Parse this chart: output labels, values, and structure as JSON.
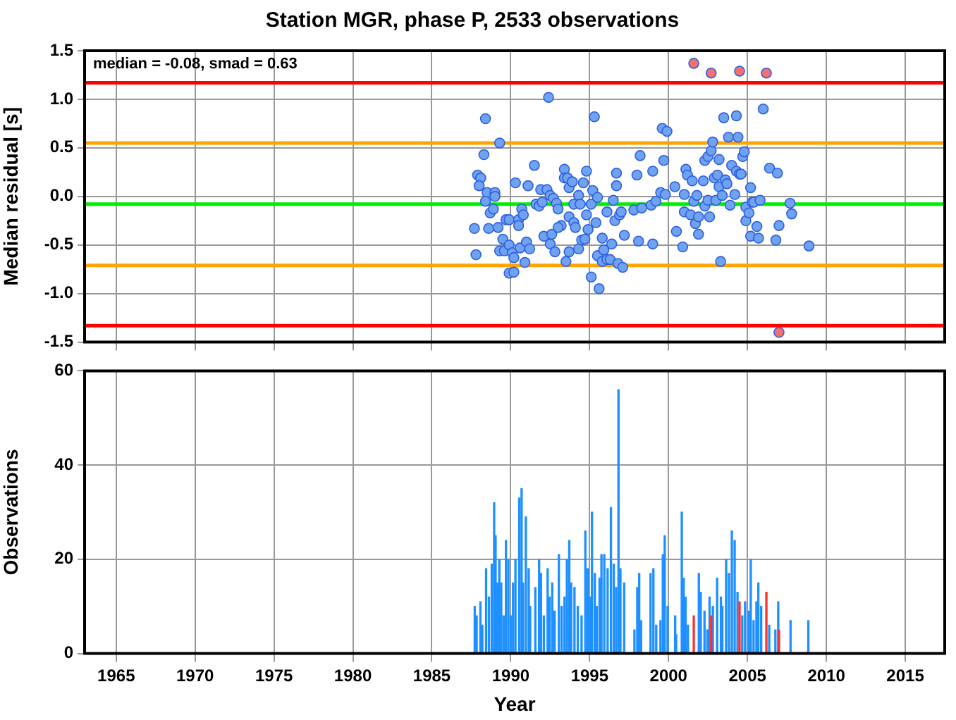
{
  "chart_data": [
    {
      "type": "scatter",
      "title": "Station MGR, phase P, 2533 observations",
      "ylabel": "Median residual [s]",
      "xlim": [
        1963,
        2017.5
      ],
      "xticks": [
        1965,
        1970,
        1975,
        1980,
        1985,
        1990,
        1995,
        2000,
        2005,
        2010,
        2015
      ],
      "ylim": [
        -1.5,
        1.5
      ],
      "yticks": [
        {
          "value": -1.5,
          "label": "-1.5"
        },
        {
          "value": -1,
          "label": "-1.0"
        },
        {
          "value": -0.5,
          "label": "-0.5"
        },
        {
          "value": 0,
          "label": "0.0"
        },
        {
          "value": 0.5,
          "label": "0.5"
        },
        {
          "value": 1,
          "label": "1.0"
        },
        {
          "value": 1.5,
          "label": "1.5"
        }
      ],
      "grid": true,
      "tick_labels": "y",
      "marker": "circle",
      "annotations": [
        "median = -0.08, smad = 0.63"
      ],
      "ref_lines": [
        {
          "axis": "y",
          "value": 1.17,
          "color": "#ff0000"
        },
        {
          "axis": "y",
          "value": 0.55,
          "color": "#ffa500"
        },
        {
          "axis": "y",
          "value": -0.08,
          "color": "#00ee00"
        },
        {
          "axis": "y",
          "value": -0.71,
          "color": "#ffa500"
        },
        {
          "axis": "y",
          "value": -1.33,
          "color": "#ff0000"
        }
      ],
      "series": [
        {
          "color": "#6fa3f0",
          "x": [
            1992.4,
            1988.4,
            1989.3,
            1988.3,
            1987.9,
            1988.1,
            1988.0,
            1988.5,
            1989.0,
            1989.0,
            1988.4,
            1988.7,
            1988.9,
            1987.7,
            1988.6,
            1989.2,
            1987.8,
            1989.5,
            1989.3,
            1989.6,
            1989.9,
            1990.1,
            1990.2,
            1989.9,
            1990.2,
            1989.7,
            1989.9,
            1990.5,
            1990.5,
            1990.7,
            1990.8,
            1990.3,
            1991.1,
            1991.5,
            1990.6,
            1991.0,
            1991.2,
            1990.9,
            1991.6,
            1991.8,
            1992.0,
            1991.9,
            1992.3,
            1992.5,
            1992.7,
            1992.9,
            1993.0,
            1992.1,
            1992.6,
            1992.5,
            1992.8,
            1993.2,
            1993.0,
            1993.4,
            1993.4,
            1993.6,
            1993.7,
            1993.9,
            1994.3,
            1994.0,
            1994.4,
            1994.6,
            1994.8,
            1993.7,
            1994.0,
            1994.1,
            1993.7,
            1993.5,
            1994.3,
            1994.5,
            1994.7,
            1994.8,
            1994.9,
            1995.1,
            1995.2,
            1995.3,
            1995.5,
            1995.4,
            1995.8,
            1995.1,
            1995.6,
            1995.5,
            1995.9,
            1995.8,
            1996.1,
            1996.3,
            1996.4,
            1996.1,
            1996.5,
            1996.6,
            1996.7,
            1996.7,
            1996.9,
            1997.0,
            1996.8,
            1997.1,
            1997.2,
            1997.8,
            1998.2,
            1998.0,
            1998.3,
            1998.1,
            1998.9,
            1999.0,
            1999.0,
            1999.2,
            1999.5,
            1999.7,
            1999.6,
            1999.9,
            1999.8,
            2000.4,
            2000.5,
            2000.9,
            2001.0,
            2001.0,
            2001.1,
            2001.2,
            2001.5,
            2001.6,
            2001.4,
            2001.7,
            2001.8,
            2001.9,
            2001.9,
            2002.2,
            2002.3,
            2002.3,
            2002.5,
            2002.5,
            2002.6,
            2002.7,
            2002.8,
            2002.9,
            2003.0,
            2003.1,
            2003.2,
            2003.2,
            2003.3,
            2003.4,
            2003.5,
            2003.6,
            2003.7,
            2003.8,
            2003.9,
            2004.0,
            2004.2,
            2004.3,
            2004.3,
            2004.4,
            2004.5,
            2004.7,
            2004.8,
            2004.6,
            2004.9,
            2004.9,
            2005.1,
            2005.2,
            2005.3,
            2005.2,
            2005.4,
            2005.6,
            2005.7,
            2005.8,
            2006.0,
            2006.4,
            2006.9,
            2007.0,
            2006.8,
            2007.7,
            2007.8,
            2008.9
          ],
          "values": [
            1.02,
            0.8,
            0.55,
            0.43,
            0.22,
            0.19,
            0.11,
            0.04,
            0.04,
            0.0,
            -0.05,
            -0.17,
            -0.13,
            -0.33,
            -0.33,
            -0.32,
            -0.6,
            -0.44,
            -0.56,
            -0.56,
            -0.5,
            -0.58,
            -0.63,
            -0.79,
            -0.78,
            -0.24,
            -0.24,
            -0.24,
            -0.3,
            -0.13,
            -0.19,
            0.14,
            0.11,
            0.32,
            -0.53,
            -0.47,
            -0.54,
            -0.68,
            -0.08,
            -0.1,
            -0.06,
            0.07,
            0.07,
            0.01,
            -0.02,
            -0.07,
            -0.13,
            -0.41,
            -0.39,
            -0.49,
            -0.57,
            -0.3,
            -0.32,
            0.28,
            0.19,
            0.19,
            0.09,
            0.15,
            0.01,
            -0.08,
            -0.08,
            0.14,
            0.26,
            -0.21,
            -0.27,
            -0.32,
            -0.57,
            -0.67,
            -0.54,
            -0.45,
            -0.44,
            -0.19,
            -0.34,
            -0.08,
            0.06,
            0.82,
            -0.01,
            -0.27,
            -0.43,
            -0.83,
            -0.95,
            -0.61,
            -0.55,
            -0.67,
            -0.65,
            -0.65,
            -0.49,
            -0.16,
            -0.04,
            -0.25,
            0.24,
            0.11,
            -0.19,
            -0.16,
            -0.69,
            -0.73,
            -0.4,
            -0.14,
            0.42,
            0.22,
            -0.12,
            -0.46,
            -0.09,
            -0.49,
            0.26,
            -0.05,
            0.04,
            0.37,
            0.7,
            0.67,
            0.02,
            0.1,
            -0.36,
            -0.52,
            0.02,
            -0.16,
            0.28,
            0.22,
            0.16,
            -0.05,
            -0.19,
            -0.28,
            0.01,
            -0.21,
            -0.39,
            0.16,
            -0.1,
            0.37,
            0.41,
            -0.04,
            -0.21,
            0.47,
            0.56,
            0.19,
            -0.04,
            0.22,
            0.38,
            0.1,
            -0.67,
            0.01,
            0.81,
            0.17,
            0.13,
            0.61,
            -0.09,
            0.32,
            0.02,
            0.83,
            0.26,
            0.61,
            0.23,
            0.41,
            0.46,
            0.23,
            -0.11,
            -0.25,
            -0.17,
            0.09,
            -0.06,
            -0.41,
            -0.06,
            -0.31,
            -0.43,
            -0.04,
            0.9,
            0.29,
            0.24,
            -0.3,
            -0.45,
            -0.07,
            -0.18,
            -0.51
          ]
        },
        {
          "color": "#f47070",
          "x": [
            2001.6,
            2002.7,
            2004.5,
            2006.2,
            2007.0
          ],
          "values": [
            1.37,
            1.27,
            1.29,
            1.27,
            -1.4
          ]
        }
      ]
    },
    {
      "type": "bar",
      "xlabel": "Year",
      "ylabel": "Observations",
      "xlim": [
        1963,
        2017.5
      ],
      "xticks": [
        1965,
        1970,
        1975,
        1980,
        1985,
        1990,
        1995,
        2000,
        2005,
        2010,
        2015
      ],
      "ylim": [
        0,
        60
      ],
      "yticks": [
        0,
        20,
        40,
        60
      ],
      "grid": true,
      "series": [
        {
          "color": "#1e90ff",
          "x": [
            1987.72,
            1987.84,
            1988.08,
            1988.2,
            1988.44,
            1988.62,
            1988.8,
            1988.95,
            1989.04,
            1989.16,
            1989.28,
            1989.4,
            1989.55,
            1989.7,
            1989.85,
            1990.0,
            1990.15,
            1990.3,
            1990.54,
            1990.69,
            1990.78,
            1990.96,
            1991.14,
            1991.23,
            1991.56,
            1991.8,
            1991.92,
            1992.1,
            1992.34,
            1992.46,
            1992.63,
            1992.78,
            1993.05,
            1993.23,
            1993.41,
            1993.56,
            1993.71,
            1993.83,
            1994.04,
            1994.25,
            1994.49,
            1994.73,
            1994.88,
            1995.03,
            1995.15,
            1995.33,
            1995.45,
            1995.63,
            1995.75,
            1995.93,
            1996.14,
            1996.35,
            1996.53,
            1996.68,
            1996.83,
            1996.95,
            1997.19,
            1997.84,
            1998.02,
            1998.14,
            1998.26,
            1998.86,
            1999.04,
            1999.22,
            1999.49,
            1999.64,
            1999.76,
            1999.94,
            2000.42,
            2000.48,
            2000.84,
            2000.96,
            2001.08,
            2001.23,
            2001.92,
            2002.04,
            2002.28,
            2002.46,
            2002.6,
            2002.81,
            2003.08,
            2003.32,
            2003.41,
            2003.65,
            2003.83,
            2004.01,
            2004.19,
            2004.37,
            2004.67,
            2004.85,
            2005.09,
            2005.21,
            2005.39,
            2005.57,
            2005.69,
            2005.87,
            2006.38,
            2006.77,
            2006.95,
            2007.73,
            2008.86
          ],
          "values": [
            10,
            8,
            11,
            6,
            18,
            12,
            19,
            32,
            25,
            15,
            20,
            15,
            8,
            24,
            20,
            8,
            15,
            20,
            33,
            35,
            15,
            29,
            18,
            10,
            14,
            20,
            17,
            8,
            18,
            12,
            15,
            9,
            21,
            10,
            12,
            20,
            24,
            15,
            14,
            10,
            8,
            26,
            18,
            12,
            30,
            17,
            10,
            16,
            21,
            21,
            18,
            31,
            19,
            14,
            56,
            18,
            15,
            5,
            14,
            17,
            7,
            17,
            18,
            6,
            7,
            21,
            25,
            10,
            8,
            4,
            30,
            16,
            12,
            6,
            17,
            13,
            9,
            5,
            12,
            10,
            16,
            12,
            10,
            20,
            17,
            26,
            24,
            13,
            8,
            11,
            9,
            20,
            7,
            11,
            15,
            10,
            6,
            5,
            11,
            7,
            7
          ]
        },
        {
          "color": "#ff3030",
          "x": [
            2001.6,
            2002.7,
            2004.5,
            2006.2,
            2007.0
          ],
          "values": [
            8,
            8,
            11,
            13,
            5
          ]
        }
      ]
    }
  ]
}
